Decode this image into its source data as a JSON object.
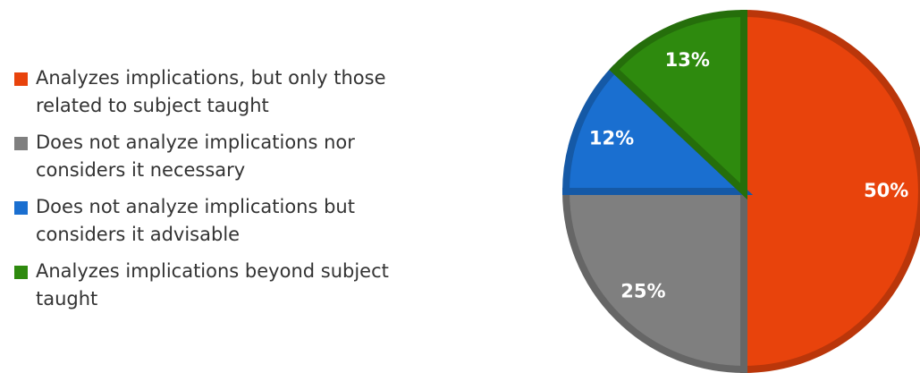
{
  "chart_data": {
    "type": "pie",
    "categories": [
      "Analyzes implications, but only those related to subject taught",
      "Does not analyze implications nor considers it necessary",
      "Does not analyze implications but considers it advisable",
      "Analyzes implications beyond subject taught"
    ],
    "values": [
      50,
      25,
      12,
      13
    ],
    "value_labels": [
      "50%",
      "25%",
      "12%",
      "13%"
    ],
    "colors": [
      "#e8430c",
      "#7f7f7f",
      "#1a6fd0",
      "#2e8a0e"
    ],
    "legend": "left"
  }
}
